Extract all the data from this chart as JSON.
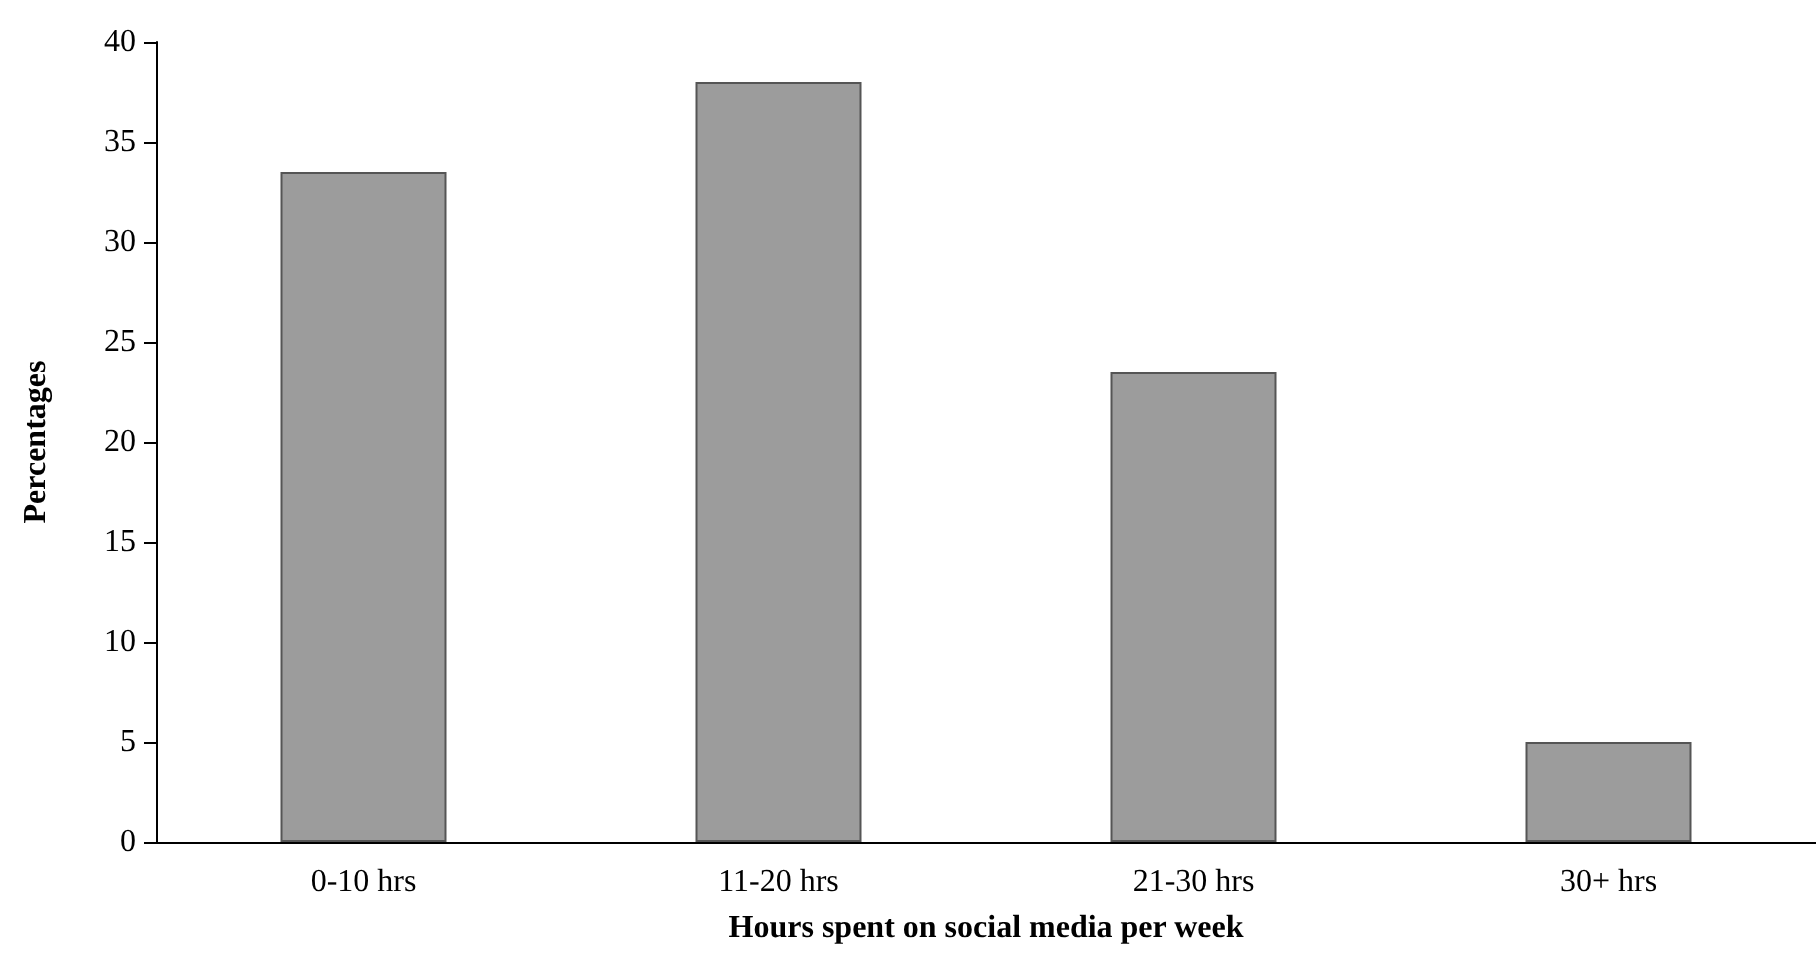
{
  "chart_data": {
    "type": "bar",
    "xlabel": "Hours spent on social media per week",
    "ylabel": "Percentages",
    "categories": [
      "0-10 hrs",
      "11-20 hrs",
      "21-30 hrs",
      "30+ hrs"
    ],
    "values": [
      33.5,
      38,
      23.5,
      5
    ],
    "color": "#9c9c9c",
    "ylim": [
      0,
      40
    ],
    "yticks": [
      0,
      5,
      10,
      15,
      20,
      25,
      30,
      35,
      40
    ],
    "grid": false
  }
}
